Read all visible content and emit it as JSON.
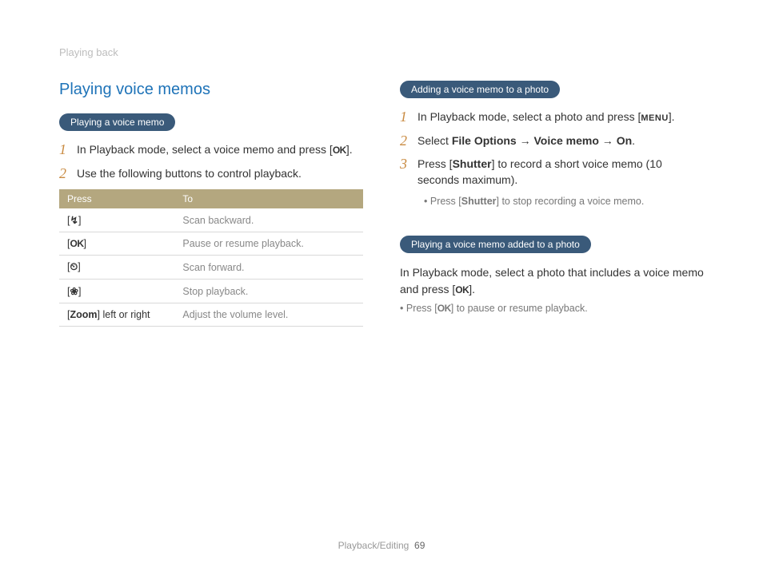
{
  "breadcrumb": "Playing back",
  "section_title": "Playing voice memos",
  "left": {
    "pill": "Playing a voice memo",
    "steps": [
      {
        "num": "1",
        "pre": "In Playback mode, select a voice memo and press [",
        "icon": "OK",
        "post": "]."
      },
      {
        "num": "2",
        "pre": "Use the following buttons to control playback.",
        "icon": "",
        "post": ""
      }
    ],
    "table": {
      "headers": [
        "Press",
        "To"
      ],
      "rows": [
        {
          "key_open": "[",
          "key_icon": "↯",
          "key_close": "]",
          "to": "Scan backward."
        },
        {
          "key_open": "[",
          "key_icon": "OK",
          "key_close": "]",
          "to": "Pause or resume playback."
        },
        {
          "key_open": "[",
          "key_icon": "⏲",
          "key_close": "]",
          "to": "Scan forward."
        },
        {
          "key_open": "[",
          "key_icon": "❀",
          "key_close": "]",
          "to": "Stop playback."
        },
        {
          "key_open": "[",
          "key_icon": "Zoom",
          "key_close": "] left or right",
          "to": "Adjust the volume level."
        }
      ]
    }
  },
  "right": {
    "block1": {
      "pill": "Adding a voice memo to a photo",
      "step1": {
        "num": "1",
        "pre": "In Playback mode, select a photo and press [",
        "icon": "MENU",
        "post": "]."
      },
      "step2": {
        "num": "2",
        "pre": "Select ",
        "b1": "File Options",
        "arrow1": " → ",
        "b2": "Voice memo",
        "arrow2": " → ",
        "b3": "On",
        "post": "."
      },
      "step3": {
        "num": "3",
        "pre": "Press [",
        "b1": "Shutter",
        "mid": "] to record a short voice memo (10 seconds maximum).",
        "sub_pre": "Press [",
        "sub_b": "Shutter",
        "sub_post": "] to stop recording a voice memo."
      }
    },
    "block2": {
      "pill": "Playing a voice memo added to a photo",
      "body_pre": "In Playback mode, select a photo that includes a voice memo and press [",
      "body_icon": "OK",
      "body_post": "].",
      "note_pre": "Press [",
      "note_icon": "OK",
      "note_post": "] to pause or resume playback."
    }
  },
  "footer": {
    "section": "Playback/Editing",
    "page": "69"
  }
}
